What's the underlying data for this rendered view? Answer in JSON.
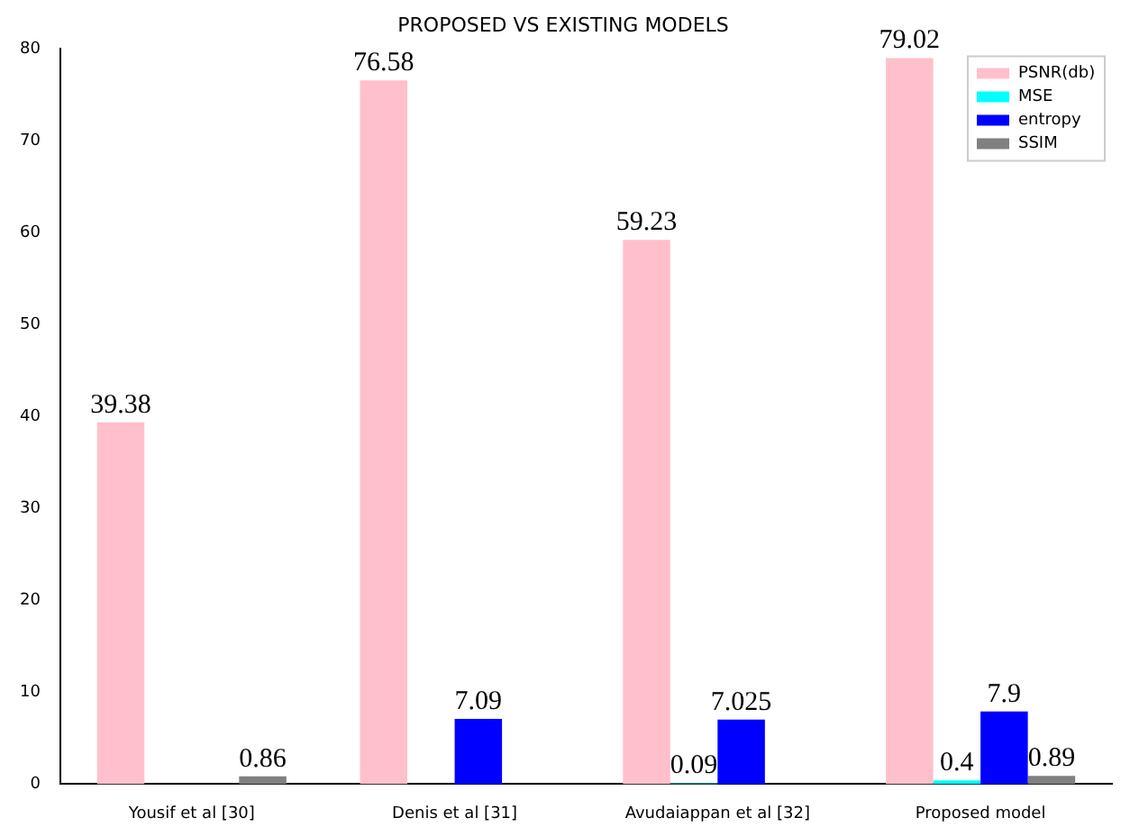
{
  "chart_data": {
    "type": "bar",
    "title": "PROPOSED VS EXISTING MODELS",
    "categories": [
      "Yousif et al [30]",
      "Denis et al [31]",
      "Avudaiappan et al [32]",
      "Proposed model"
    ],
    "series": [
      {
        "name": "PSNR(db)",
        "color": "#ffc0cb",
        "values": [
          39.38,
          76.58,
          59.23,
          79.02
        ]
      },
      {
        "name": "MSE",
        "color": "#00ffff",
        "values": [
          null,
          null,
          0.09,
          0.4
        ]
      },
      {
        "name": "entropy",
        "color": "#0000ff",
        "values": [
          null,
          7.09,
          7.025,
          7.9
        ]
      },
      {
        "name": "SSIM",
        "color": "#808080",
        "values": [
          0.86,
          null,
          null,
          0.89
        ]
      }
    ],
    "ylim": [
      0,
      80
    ],
    "yticks": [
      0,
      10,
      20,
      30,
      40,
      50,
      60,
      70,
      80
    ],
    "data_labels": true,
    "legend": "top right",
    "grid": false
  }
}
